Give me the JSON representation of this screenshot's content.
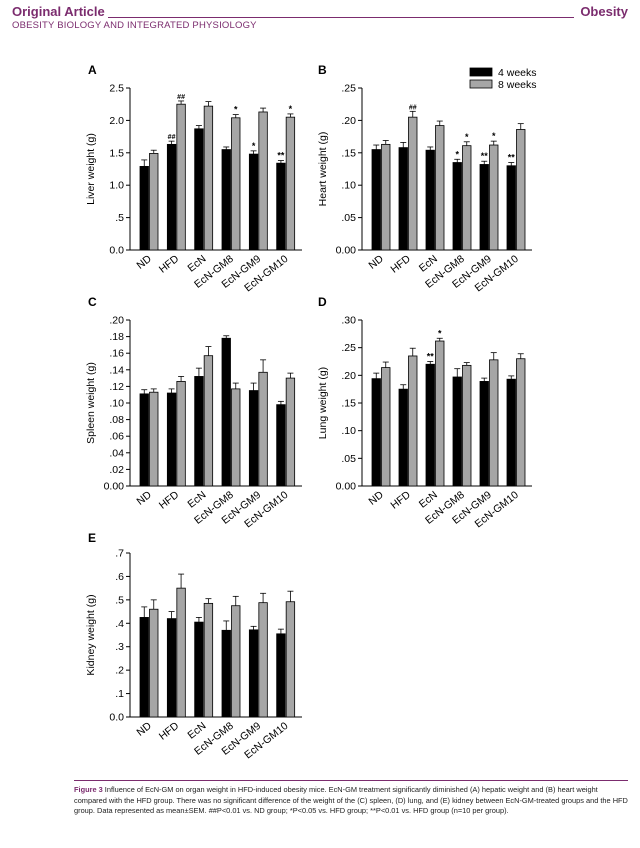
{
  "header": {
    "article_type": "Original Article",
    "section": "OBESITY BIOLOGY AND INTEGRATED PHYSIOLOGY",
    "journal": "Obesity"
  },
  "caption": {
    "label": "Figure 3",
    "text": " Influence of EcN-GM on organ weight in HFD-induced obesity mice. EcN-GM treatment significantly diminished (A) hepatic weight and (B) heart weight compared with the HFD group. There was no significant difference of the weight of the (C) spleen, (D) lung, and (E) kidney between EcN-GM-treated groups and the HFD group. Data represented as mean±SEM. ##P<0.01 vs. ND group; *P<0.05 vs. HFD group; **P<0.01 vs. HFD group (n=10 per group)."
  },
  "colors": {
    "week4": "#000000",
    "week8": "#a6a6a6",
    "accent": "#7b2c6e"
  },
  "chart_data": [
    {
      "panel": "A",
      "type": "bar",
      "ylabel": "Liver weight (g)",
      "categories": [
        "ND",
        "HFD",
        "EcN",
        "EcN-GM8",
        "EcN-GM9",
        "EcN-GM10"
      ],
      "ylim": [
        0,
        2.5
      ],
      "yticks": [
        "0.0",
        ".5",
        "1.0",
        "1.5",
        "2.0",
        "2.5"
      ],
      "ytick_values": [
        0,
        0.5,
        1.0,
        1.5,
        2.0,
        2.5
      ],
      "series": [
        {
          "name": "4 weeks",
          "values": [
            1.29,
            1.63,
            1.87,
            1.55,
            1.48,
            1.34
          ],
          "errors": [
            0.1,
            0.05,
            0.05,
            0.04,
            0.05,
            0.04
          ],
          "marks": [
            "",
            "##",
            "",
            "",
            "*",
            "**"
          ]
        },
        {
          "name": "8 weeks",
          "values": [
            1.49,
            2.25,
            2.22,
            2.04,
            2.13,
            2.05
          ],
          "errors": [
            0.05,
            0.05,
            0.07,
            0.05,
            0.06,
            0.05
          ],
          "marks": [
            "",
            "##",
            "",
            "*",
            "",
            "*"
          ]
        }
      ]
    },
    {
      "panel": "B",
      "type": "bar",
      "ylabel": "Heart weight (g)",
      "categories": [
        "ND",
        "HFD",
        "EcN",
        "EcN-GM8",
        "EcN-GM9",
        "EcN-GM10"
      ],
      "ylim": [
        0,
        0.25
      ],
      "yticks": [
        "0.00",
        ".05",
        ".10",
        ".15",
        ".20",
        ".25"
      ],
      "ytick_values": [
        0,
        0.05,
        0.1,
        0.15,
        0.2,
        0.25
      ],
      "legend": [
        "4 weeks",
        "8 weeks"
      ],
      "series": [
        {
          "name": "4 weeks",
          "values": [
            0.155,
            0.158,
            0.154,
            0.135,
            0.132,
            0.13
          ],
          "errors": [
            0.007,
            0.008,
            0.005,
            0.005,
            0.005,
            0.005
          ],
          "marks": [
            "",
            "",
            "",
            "*",
            "**",
            "**"
          ]
        },
        {
          "name": "8 weeks",
          "values": [
            0.163,
            0.205,
            0.192,
            0.161,
            0.162,
            0.186
          ],
          "errors": [
            0.006,
            0.009,
            0.007,
            0.006,
            0.006,
            0.009
          ],
          "marks": [
            "",
            "##",
            "",
            "*",
            "*",
            ""
          ]
        }
      ]
    },
    {
      "panel": "C",
      "type": "bar",
      "ylabel": "Spleen weight (g)",
      "categories": [
        "ND",
        "HFD",
        "EcN",
        "EcN-GM8",
        "EcN-GM9",
        "EcN-GM10"
      ],
      "ylim": [
        0,
        0.2
      ],
      "yticks": [
        "0.00",
        ".02",
        ".04",
        ".06",
        ".08",
        ".10",
        ".12",
        ".14",
        ".16",
        ".18",
        ".20"
      ],
      "ytick_values": [
        0,
        0.02,
        0.04,
        0.06,
        0.08,
        0.1,
        0.12,
        0.14,
        0.16,
        0.18,
        0.2
      ],
      "series": [
        {
          "name": "4 weeks",
          "values": [
            0.111,
            0.112,
            0.132,
            0.178,
            0.115,
            0.098
          ],
          "errors": [
            0.005,
            0.005,
            0.01,
            0.003,
            0.009,
            0.004
          ],
          "marks": [
            "",
            "",
            "",
            "",
            "",
            ""
          ]
        },
        {
          "name": "8 weeks",
          "values": [
            0.113,
            0.126,
            0.157,
            0.117,
            0.137,
            0.13
          ],
          "errors": [
            0.004,
            0.006,
            0.011,
            0.007,
            0.015,
            0.006
          ],
          "marks": [
            "",
            "",
            "",
            "",
            "",
            ""
          ]
        }
      ]
    },
    {
      "panel": "D",
      "type": "bar",
      "ylabel": "Lung weight (g)",
      "categories": [
        "ND",
        "HFD",
        "EcN",
        "EcN-GM8",
        "EcN-GM9",
        "EcN-GM10"
      ],
      "ylim": [
        0,
        0.3
      ],
      "yticks": [
        "0.00",
        ".05",
        ".10",
        ".15",
        ".20",
        ".25",
        ".30"
      ],
      "ytick_values": [
        0,
        0.05,
        0.1,
        0.15,
        0.2,
        0.25,
        0.3
      ],
      "series": [
        {
          "name": "4 weeks",
          "values": [
            0.194,
            0.175,
            0.22,
            0.197,
            0.189,
            0.193
          ],
          "errors": [
            0.01,
            0.008,
            0.005,
            0.015,
            0.006,
            0.006
          ],
          "marks": [
            "",
            "",
            "**",
            "",
            "",
            ""
          ]
        },
        {
          "name": "8 weeks",
          "values": [
            0.214,
            0.235,
            0.262,
            0.218,
            0.228,
            0.23
          ],
          "errors": [
            0.01,
            0.014,
            0.005,
            0.005,
            0.013,
            0.009
          ],
          "marks": [
            "",
            "",
            "*",
            "",
            "",
            ""
          ]
        }
      ]
    },
    {
      "panel": "E",
      "type": "bar",
      "ylabel": "Kidney weight (g)",
      "categories": [
        "ND",
        "HFD",
        "EcN",
        "EcN-GM8",
        "EcN-GM9",
        "EcN-GM10"
      ],
      "ylim": [
        0,
        0.7
      ],
      "yticks": [
        "0.0",
        ".1",
        ".2",
        ".3",
        ".4",
        ".5",
        ".6",
        ".7"
      ],
      "ytick_values": [
        0,
        0.1,
        0.2,
        0.3,
        0.4,
        0.5,
        0.6,
        0.7
      ],
      "series": [
        {
          "name": "4 weeks",
          "values": [
            0.425,
            0.42,
            0.405,
            0.37,
            0.372,
            0.355
          ],
          "errors": [
            0.045,
            0.03,
            0.02,
            0.04,
            0.015,
            0.02
          ],
          "marks": [
            "",
            "",
            "",
            "",
            "",
            ""
          ]
        },
        {
          "name": "8 weeks",
          "values": [
            0.46,
            0.55,
            0.485,
            0.475,
            0.488,
            0.492
          ],
          "errors": [
            0.04,
            0.06,
            0.02,
            0.04,
            0.04,
            0.045
          ],
          "marks": [
            "",
            "",
            "",
            "",
            "",
            ""
          ]
        }
      ]
    }
  ]
}
